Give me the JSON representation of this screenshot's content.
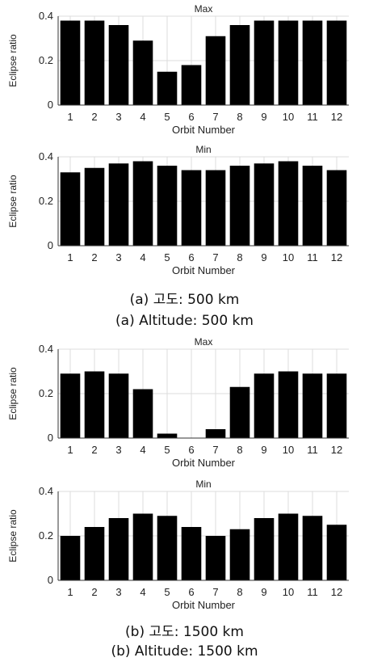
{
  "chart_data": [
    {
      "type": "bar",
      "title": "Max",
      "xlabel": "Orbit Number",
      "ylabel": "Eclipse ratio",
      "categories": [
        "1",
        "2",
        "3",
        "4",
        "5",
        "6",
        "7",
        "8",
        "9",
        "10",
        "11",
        "12"
      ],
      "values": [
        0.38,
        0.38,
        0.36,
        0.29,
        0.15,
        0.18,
        0.31,
        0.36,
        0.38,
        0.38,
        0.38,
        0.38
      ],
      "ylim": [
        0,
        0.4
      ],
      "yticks": [
        "0",
        "0.2",
        "0.4"
      ],
      "grid": true,
      "bar_color": "#000000"
    },
    {
      "type": "bar",
      "title": "Min",
      "xlabel": "Orbit Number",
      "ylabel": "Eclipse ratio",
      "categories": [
        "1",
        "2",
        "3",
        "4",
        "5",
        "6",
        "7",
        "8",
        "9",
        "10",
        "11",
        "12"
      ],
      "values": [
        0.33,
        0.35,
        0.37,
        0.38,
        0.36,
        0.34,
        0.34,
        0.36,
        0.37,
        0.38,
        0.36,
        0.34
      ],
      "ylim": [
        0,
        0.4
      ],
      "yticks": [
        "0",
        "0.2",
        "0.4"
      ],
      "grid": true,
      "bar_color": "#000000"
    },
    {
      "type": "bar",
      "title": "Max",
      "xlabel": "Orbit Number",
      "ylabel": "Eclipse ratio",
      "categories": [
        "1",
        "2",
        "3",
        "4",
        "5",
        "6",
        "7",
        "8",
        "9",
        "10",
        "11",
        "12"
      ],
      "values": [
        0.29,
        0.3,
        0.29,
        0.22,
        0.02,
        0.0,
        0.04,
        0.23,
        0.29,
        0.3,
        0.29,
        0.29
      ],
      "ylim": [
        0,
        0.4
      ],
      "yticks": [
        "0",
        "0.2",
        "0.4"
      ],
      "grid": true,
      "bar_color": "#000000"
    },
    {
      "type": "bar",
      "title": "Min",
      "xlabel": "Orbit Number",
      "ylabel": "Eclipse ratio",
      "categories": [
        "1",
        "2",
        "3",
        "4",
        "5",
        "6",
        "7",
        "8",
        "9",
        "10",
        "11",
        "12"
      ],
      "values": [
        0.2,
        0.24,
        0.28,
        0.3,
        0.29,
        0.24,
        0.2,
        0.23,
        0.28,
        0.3,
        0.29,
        0.25
      ],
      "ylim": [
        0,
        0.4
      ],
      "yticks": [
        "0",
        "0.2",
        "0.4"
      ],
      "grid": true,
      "bar_color": "#000000"
    }
  ],
  "captions": {
    "a_korean": "(a) 고도: 500 km",
    "a_english": "(a) Altitude: 500 km",
    "b_korean": "(b) 고도: 1500 km",
    "b_english": "(b) Altitude: 1500 km"
  }
}
